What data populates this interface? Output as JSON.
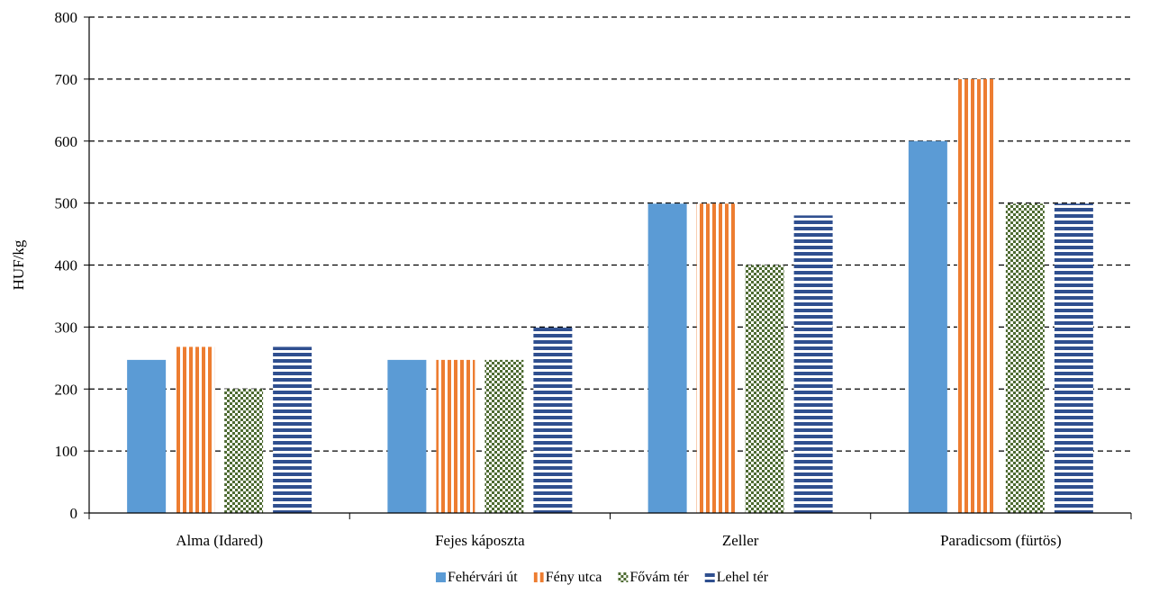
{
  "chart_data": {
    "type": "bar",
    "title": "",
    "xlabel": "",
    "ylabel": "HUF/kg",
    "ylim": [
      0,
      800
    ],
    "yticks": [
      0,
      100,
      200,
      300,
      400,
      500,
      600,
      700,
      800
    ],
    "grid": true,
    "legend_position": "bottom",
    "categories": [
      "Alma (Idared)",
      "Fejes káposzta",
      "Zeller",
      "Paradicsom (fürtös)"
    ],
    "series": [
      {
        "name": "Fehérvári út",
        "values": [
          247,
          247,
          499,
          600
        ],
        "color": "#5b9bd5",
        "pattern": "solid"
      },
      {
        "name": "Fény utca",
        "values": [
          268,
          247,
          499,
          700
        ],
        "color": "#ed7d31",
        "pattern": "vertical-stripes"
      },
      {
        "name": "Fővám tér",
        "values": [
          200,
          247,
          400,
          499
        ],
        "color": "#4e6b32",
        "pattern": "checker"
      },
      {
        "name": "Lehel tér",
        "values": [
          268,
          299,
          480,
          499
        ],
        "color": "#2f4f8f",
        "pattern": "horizontal-stripes"
      }
    ]
  }
}
